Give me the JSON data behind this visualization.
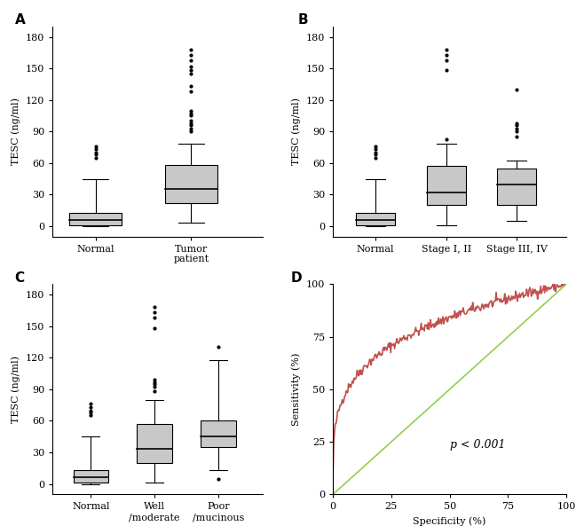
{
  "panel_A": {
    "label": "A",
    "groups": [
      "Normal",
      "Tumor\npatient"
    ],
    "boxes": [
      {
        "q1": 1,
        "median": 6,
        "q3": 13,
        "whisker_low": 0,
        "whisker_high": 45,
        "outliers": [
          65,
          68,
          70,
          73,
          76
        ]
      },
      {
        "q1": 22,
        "median": 35,
        "q3": 58,
        "whisker_low": 3,
        "whisker_high": 78,
        "outliers": [
          90,
          93,
          96,
          98,
          100,
          105,
          107,
          110,
          128,
          133,
          145,
          148,
          152,
          158,
          163,
          168
        ]
      }
    ],
    "ylim": [
      -10,
      190
    ],
    "yticks": [
      0,
      30,
      60,
      90,
      120,
      150,
      180
    ],
    "ylabel": "TESC (ng/ml)"
  },
  "panel_B": {
    "label": "B",
    "groups": [
      "Normal",
      "Stage I, II",
      "Stage III, IV"
    ],
    "boxes": [
      {
        "q1": 1,
        "median": 6,
        "q3": 13,
        "whisker_low": 0,
        "whisker_high": 45,
        "outliers": [
          65,
          68,
          70,
          73,
          76
        ]
      },
      {
        "q1": 20,
        "median": 32,
        "q3": 57,
        "whisker_low": 1,
        "whisker_high": 78,
        "outliers": [
          83,
          148,
          158,
          163,
          168
        ]
      },
      {
        "q1": 20,
        "median": 40,
        "q3": 55,
        "whisker_low": 5,
        "whisker_high": 62,
        "outliers": [
          85,
          90,
          93,
          96,
          98,
          130
        ]
      }
    ],
    "ylim": [
      -10,
      190
    ],
    "yticks": [
      0,
      30,
      60,
      90,
      120,
      150,
      180
    ],
    "ylabel": "TESC (ng/ml)"
  },
  "panel_C": {
    "label": "C",
    "groups": [
      "Normal",
      "Well\n/moderate",
      "Poor\n/mucinous"
    ],
    "boxes": [
      {
        "q1": 1,
        "median": 6,
        "q3": 13,
        "whisker_low": 0,
        "whisker_high": 45,
        "outliers": [
          65,
          68,
          70,
          73,
          76
        ]
      },
      {
        "q1": 20,
        "median": 33,
        "q3": 57,
        "whisker_low": 1,
        "whisker_high": 80,
        "outliers": [
          88,
          92,
          95,
          97,
          99,
          148,
          158,
          163,
          168
        ]
      },
      {
        "q1": 35,
        "median": 45,
        "q3": 60,
        "whisker_low": 13,
        "whisker_high": 118,
        "outliers": [
          5,
          130
        ]
      }
    ],
    "ylim": [
      -10,
      190
    ],
    "yticks": [
      0,
      30,
      60,
      90,
      120,
      150,
      180
    ],
    "ylabel": "TESC (ng/ml)"
  },
  "panel_D": {
    "label": "D",
    "ylabel": "Sensitivity (%)",
    "xlabel": "Specificity (%)",
    "annotation": "p < 0.001",
    "ylim": [
      0,
      100
    ],
    "xlim": [
      0,
      100
    ],
    "yticks": [
      0,
      25,
      50,
      75,
      100
    ],
    "xticks": [
      0,
      25,
      50,
      75,
      100
    ],
    "roc_color": "#c0504d",
    "diag_color": "#92d050"
  },
  "box_facecolor": "#c8c8c8",
  "box_edgecolor": "#000000",
  "outlier_color": "#000000",
  "whisker_color": "#000000",
  "median_color": "#000000",
  "bg_color": "#ffffff",
  "fontfamily": "serif"
}
